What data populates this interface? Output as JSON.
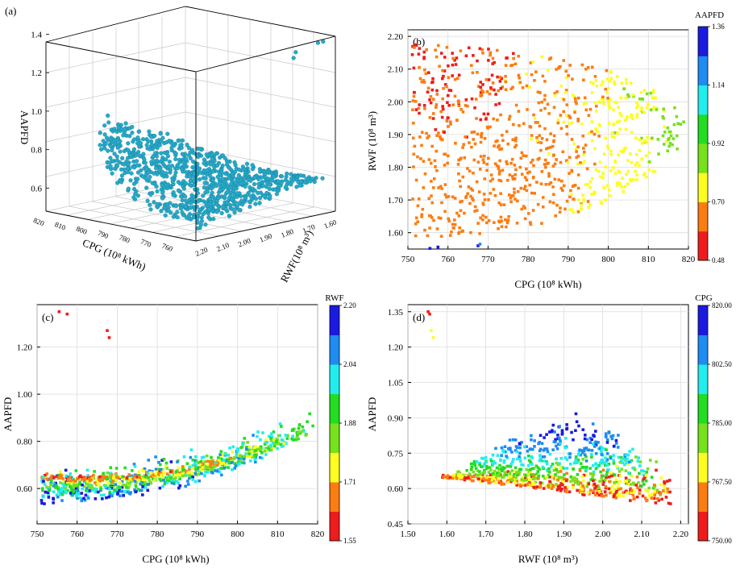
{
  "chart_data": [
    {
      "panel": "(a)",
      "type": "scatter3d",
      "zlabel": "AAPFD",
      "xlabel": "CPG (10⁸ kWh)",
      "ylabel": "RWF(10⁸ m³)",
      "z_ticks": [
        "0.6",
        "0.8",
        "1.0",
        "1.2",
        "1.4"
      ],
      "x_ticks": [
        "820",
        "810",
        "800",
        "790",
        "780",
        "770",
        "760"
      ],
      "y_ticks": [
        "1.60",
        "1.70",
        "1.80",
        "1.90",
        "2.00",
        "2.10",
        "2.20"
      ],
      "point_color": "#27a9c9",
      "xlim": [
        750,
        820
      ],
      "ylim": [
        1.55,
        2.2
      ],
      "zlim": [
        0.48,
        1.36
      ]
    },
    {
      "panel": "(b)",
      "type": "scatter",
      "xlabel": "CPG (10⁸ kWh)",
      "ylabel": "RWF (10⁸ m³)",
      "xlim": [
        750,
        820
      ],
      "ylim": [
        1.55,
        2.22
      ],
      "x_ticks": [
        "750",
        "760",
        "770",
        "780",
        "790",
        "800",
        "810",
        "820"
      ],
      "y_ticks": [
        "1.60",
        "1.70",
        "1.80",
        "1.90",
        "2.00",
        "2.10",
        "2.20"
      ],
      "colorbar": {
        "title": "AAPFD",
        "ticks": [
          "0.48",
          "0.70",
          "0.92",
          "1.14",
          "1.36"
        ],
        "range": [
          0.48,
          1.36
        ]
      }
    },
    {
      "panel": "(c)",
      "type": "scatter",
      "xlabel": "CPG (10⁸ kWh)",
      "ylabel": "AAPFD",
      "xlim": [
        750,
        820
      ],
      "ylim": [
        0.45,
        1.38
      ],
      "x_ticks": [
        "750",
        "760",
        "770",
        "780",
        "790",
        "800",
        "810",
        "820"
      ],
      "y_ticks": [
        "0.60",
        "0.80",
        "1.00",
        "1.20"
      ],
      "colorbar": {
        "title": "RWF",
        "ticks": [
          "1.55",
          "1.71",
          "1.88",
          "2.04",
          "2.20"
        ],
        "range": [
          1.55,
          2.2
        ]
      }
    },
    {
      "panel": "(d)",
      "type": "scatter",
      "xlabel": "RWF (10⁸ m³)",
      "ylabel": "AAPFD",
      "xlim": [
        1.5,
        2.22
      ],
      "ylim": [
        0.45,
        1.38
      ],
      "x_ticks": [
        "1.50",
        "1.60",
        "1.70",
        "1.80",
        "1.90",
        "2.00",
        "2.10",
        "2.20"
      ],
      "y_ticks": [
        "0.45",
        "0.60",
        "0.75",
        "0.90",
        "1.05",
        "1.20",
        "1.35"
      ],
      "colorbar": {
        "title": "CPG",
        "ticks": [
          "750.00",
          "767.50",
          "785.00",
          "802.50",
          "820.00"
        ],
        "range": [
          750,
          820
        ]
      }
    }
  ]
}
